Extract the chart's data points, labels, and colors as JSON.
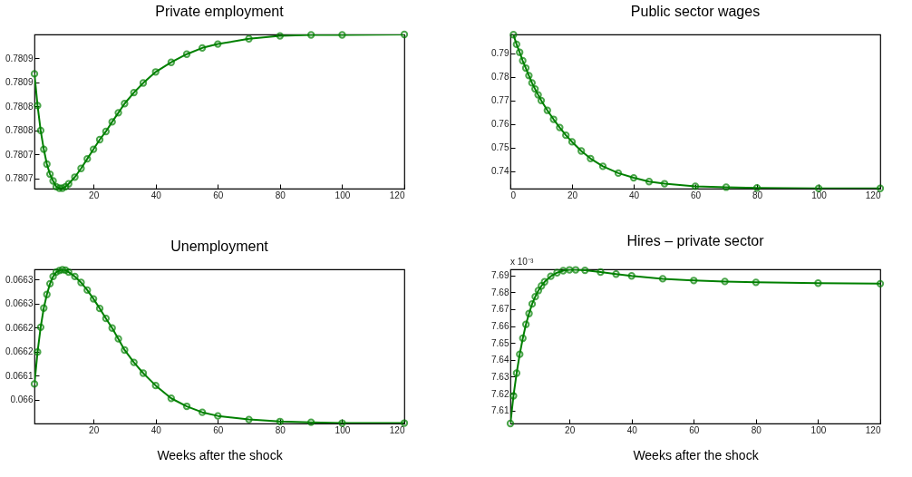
{
  "chart_data": [
    {
      "type": "line",
      "title": "Private employment",
      "xlim": [
        1,
        120
      ],
      "xticks": [
        20,
        40,
        60,
        80,
        100,
        120
      ],
      "ylim": [
        0.780639,
        0.78096
      ],
      "yticks": [
        {
          "value": 0.78066,
          "label": "0.7807"
        },
        {
          "value": 0.78071,
          "label": "0.7807"
        },
        {
          "value": 0.78076,
          "label": "0.7808"
        },
        {
          "value": 0.78081,
          "label": "0.7808"
        },
        {
          "value": 0.78086,
          "label": "0.7809"
        },
        {
          "value": 0.78091,
          "label": "0.7809"
        }
      ],
      "marker": "circle",
      "line_style": "solid",
      "grid": false,
      "legend": false,
      "series": [
        {
          "color": "#008000",
          "x": [
            1,
            2,
            3,
            4,
            5,
            6,
            7,
            8,
            9,
            10,
            11,
            12,
            14,
            16,
            18,
            20,
            22,
            24,
            26,
            28,
            30,
            33,
            36,
            40,
            45,
            50,
            55,
            60,
            70,
            80,
            90,
            100,
            120
          ],
          "values": [
            0.780878,
            0.780812,
            0.78076,
            0.780721,
            0.78069,
            0.780669,
            0.780655,
            0.780643,
            0.78064,
            0.78064,
            0.780643,
            0.780649,
            0.780663,
            0.780681,
            0.780701,
            0.780721,
            0.780741,
            0.780758,
            0.780778,
            0.780797,
            0.780816,
            0.780839,
            0.780859,
            0.780882,
            0.780902,
            0.780919,
            0.780932,
            0.78094,
            0.780951,
            0.780957,
            0.780959,
            0.780959,
            0.78096
          ]
        }
      ]
    },
    {
      "type": "line",
      "title": "Public sector wages",
      "xlim": [
        0,
        120
      ],
      "xticks": [
        0,
        20,
        40,
        60,
        80,
        100,
        120
      ],
      "ylim": [
        0.7325,
        0.7981
      ],
      "yticks": [
        0.74,
        0.75,
        0.76,
        0.77,
        0.78,
        0.79
      ],
      "marker": "circle",
      "line_style": "solid",
      "grid": false,
      "legend": false,
      "series": [
        {
          "color": "#008000",
          "x": [
            1,
            2,
            3,
            4,
            5,
            6,
            7,
            8,
            9,
            10,
            12,
            14,
            16,
            18,
            20,
            23,
            26,
            30,
            35,
            40,
            45,
            50,
            60,
            70,
            80,
            100,
            120
          ],
          "values": [
            0.798,
            0.7939,
            0.7905,
            0.7869,
            0.7838,
            0.7806,
            0.7775,
            0.7749,
            0.7724,
            0.77,
            0.7658,
            0.762,
            0.7585,
            0.7552,
            0.7524,
            0.7485,
            0.7453,
            0.742,
            0.7391,
            0.7371,
            0.7355,
            0.7346,
            0.7335,
            0.7331,
            0.7328,
            0.7326,
            0.7326
          ]
        }
      ]
    },
    {
      "type": "line",
      "title": "Unemployment",
      "xlabel": "Weeks after the shock",
      "xlim": [
        1,
        120
      ],
      "xticks": [
        20,
        40,
        60,
        80,
        100,
        120
      ],
      "ylim": [
        0.06598,
        0.066366
      ],
      "yticks": [
        {
          "value": 0.06604,
          "label": "0.066"
        },
        {
          "value": 0.0661,
          "label": "0.0661"
        },
        {
          "value": 0.06616,
          "label": "0.0662"
        },
        {
          "value": 0.06622,
          "label": "0.0662"
        },
        {
          "value": 0.06628,
          "label": "0.0663"
        },
        {
          "value": 0.06634,
          "label": "0.0663"
        }
      ],
      "marker": "circle",
      "line_style": "solid",
      "grid": false,
      "legend": false,
      "series": [
        {
          "color": "#008000",
          "x": [
            1,
            2,
            3,
            4,
            5,
            6,
            7,
            8,
            9,
            10,
            11,
            12,
            14,
            16,
            18,
            20,
            22,
            24,
            26,
            28,
            30,
            33,
            36,
            40,
            45,
            50,
            55,
            60,
            70,
            80,
            90,
            100,
            120
          ],
          "values": [
            0.066079,
            0.066159,
            0.066221,
            0.066269,
            0.066303,
            0.06633,
            0.066348,
            0.066359,
            0.066363,
            0.066365,
            0.066364,
            0.066359,
            0.066348,
            0.066333,
            0.066314,
            0.066292,
            0.066268,
            0.066243,
            0.066219,
            0.066192,
            0.066164,
            0.066133,
            0.066106,
            0.066075,
            0.066043,
            0.066023,
            0.066008,
            0.065999,
            0.06599,
            0.065985,
            0.065983,
            0.065981,
            0.065981
          ]
        }
      ]
    },
    {
      "type": "line",
      "title": "Hires – private sector",
      "xlabel": "Weeks after the shock",
      "annotations": [
        "x 10⁻³"
      ],
      "xlim": [
        1,
        120
      ],
      "xticks": [
        20,
        40,
        60,
        80,
        100,
        120
      ],
      "ylim": [
        7.6023,
        7.6936
      ],
      "yticks": [
        7.61,
        7.62,
        7.63,
        7.64,
        7.65,
        7.66,
        7.67,
        7.68,
        7.69
      ],
      "marker": "circle",
      "line_style": "solid",
      "grid": false,
      "legend": false,
      "series": [
        {
          "color": "#008000",
          "x": [
            1,
            2,
            3,
            4,
            5,
            6,
            7,
            8,
            9,
            10,
            11,
            12,
            14,
            16,
            18,
            20,
            22,
            25,
            30,
            35,
            40,
            50,
            60,
            70,
            80,
            100,
            120
          ],
          "values": [
            7.6023,
            7.6187,
            7.6321,
            7.6433,
            7.6528,
            7.661,
            7.6674,
            7.6731,
            7.6774,
            7.681,
            7.6838,
            7.6862,
            7.6895,
            7.6916,
            7.6928,
            7.6933,
            7.6933,
            7.693,
            7.692,
            7.6908,
            7.6897,
            7.688,
            7.687,
            7.6864,
            7.6859,
            7.6854,
            7.6851
          ]
        }
      ]
    }
  ]
}
